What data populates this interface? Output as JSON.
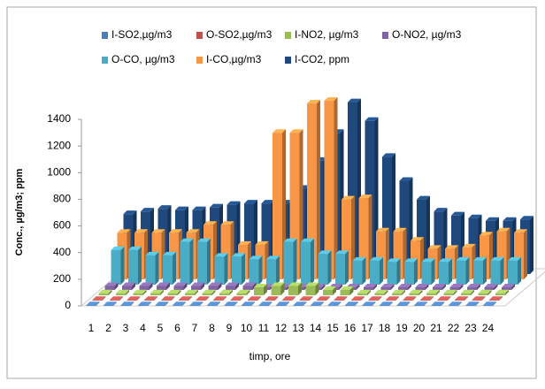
{
  "chart_data": {
    "type": "bar3d",
    "y_label": "Conc., µg/m3; ppm",
    "x_label": "timp, ore",
    "categories": [
      "1",
      "2",
      "3",
      "4",
      "5",
      "6",
      "7",
      "8",
      "9",
      "10",
      "11",
      "12",
      "13",
      "14",
      "15",
      "16",
      "17",
      "18",
      "19",
      "20",
      "21",
      "22",
      "23",
      "24"
    ],
    "ylim": [
      0,
      1400
    ],
    "yticks": [
      0,
      200,
      400,
      600,
      800,
      1000,
      1200,
      1400
    ],
    "grid": false,
    "series": [
      {
        "name": "I-SO2,µg/m3",
        "color": "#4a7ebb",
        "values": [
          5,
          5,
          5,
          5,
          5,
          5,
          5,
          5,
          5,
          5,
          5,
          5,
          5,
          5,
          5,
          5,
          5,
          5,
          5,
          5,
          5,
          5,
          5,
          5
        ]
      },
      {
        "name": "O-SO2,µg/m3",
        "color": "#c0504d",
        "values": [
          5,
          5,
          5,
          5,
          5,
          5,
          5,
          5,
          5,
          5,
          5,
          5,
          5,
          5,
          5,
          5,
          5,
          5,
          5,
          5,
          5,
          5,
          5,
          5
        ]
      },
      {
        "name": "I-NO2, µg/m3",
        "color": "#9bbb59",
        "values": [
          15,
          15,
          15,
          15,
          15,
          15,
          15,
          15,
          15,
          60,
          70,
          70,
          70,
          40,
          40,
          15,
          15,
          15,
          15,
          15,
          15,
          15,
          15,
          15
        ]
      },
      {
        "name": "O-NO2, µg/m3",
        "color": "#8064a2",
        "values": [
          30,
          30,
          30,
          30,
          30,
          30,
          30,
          30,
          30,
          20,
          20,
          20,
          20,
          20,
          20,
          20,
          20,
          20,
          20,
          20,
          20,
          20,
          20,
          20
        ]
      },
      {
        "name": "O-CO, µg/m3",
        "color": "#4bacc6",
        "values": [
          260,
          260,
          220,
          220,
          320,
          320,
          210,
          210,
          190,
          190,
          320,
          320,
          230,
          230,
          180,
          180,
          170,
          170,
          170,
          170,
          180,
          180,
          180,
          180
        ]
      },
      {
        "name": "I-CO,µg/m3",
        "color": "#f79646",
        "values": [
          350,
          350,
          350,
          350,
          350,
          410,
          410,
          260,
          260,
          1100,
          1100,
          1320,
          1340,
          600,
          610,
          360,
          360,
          290,
          230,
          230,
          240,
          330,
          360,
          350
        ]
      },
      {
        "name": "I-CO2, ppm",
        "color": "#1f497d",
        "values": [
          450,
          470,
          490,
          480,
          480,
          500,
          520,
          530,
          530,
          530,
          640,
          850,
          1060,
          1290,
          1150,
          880,
          700,
          560,
          470,
          440,
          420,
          400,
          400,
          410
        ]
      }
    ]
  }
}
